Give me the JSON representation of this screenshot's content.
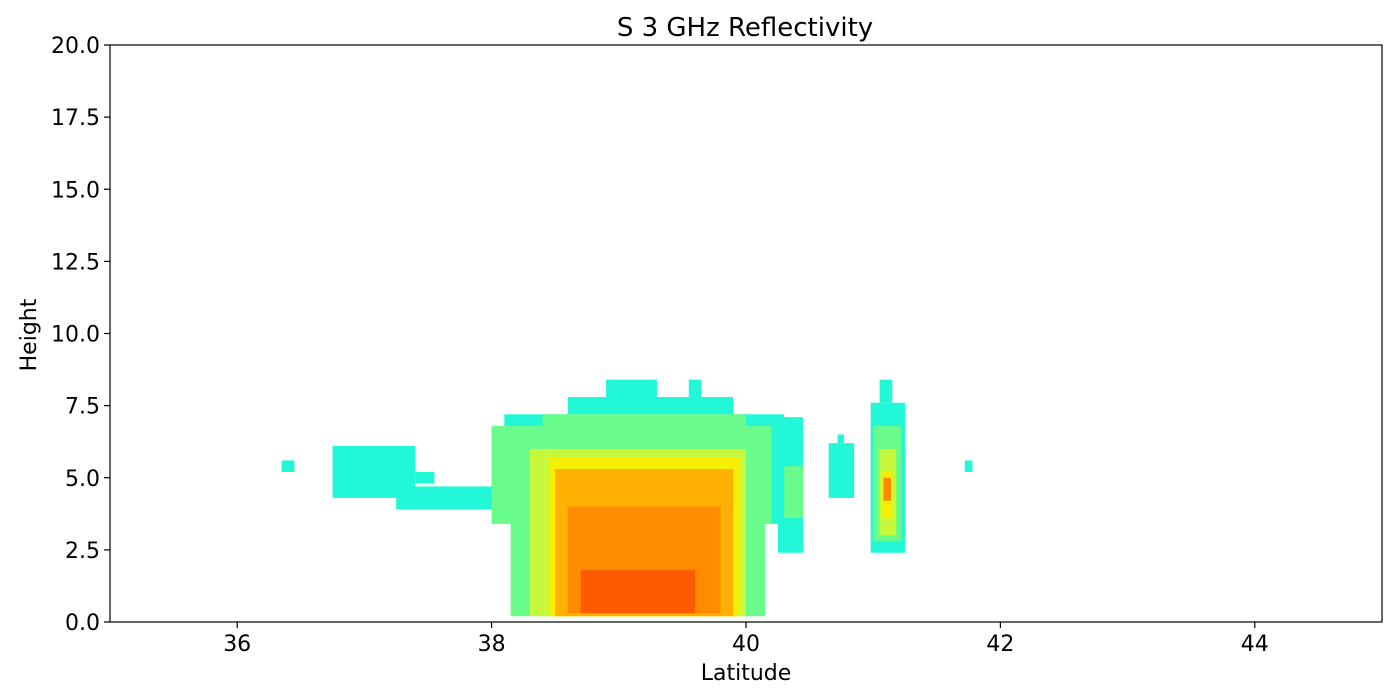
{
  "chart_data": {
    "type": "heatmap",
    "title": "S 3 GHz Reflectivity",
    "xlabel": "Latitude",
    "ylabel": "Height",
    "xlim": [
      35,
      45
    ],
    "ylim": [
      0,
      20
    ],
    "xticks": [
      {
        "value": 36,
        "label": "36"
      },
      {
        "value": 38,
        "label": "38"
      },
      {
        "value": 40,
        "label": "40"
      },
      {
        "value": 42,
        "label": "42"
      },
      {
        "value": 44,
        "label": "44"
      }
    ],
    "yticks": [
      {
        "value": 0.0,
        "label": "0.0"
      },
      {
        "value": 2.5,
        "label": "2.5"
      },
      {
        "value": 5.0,
        "label": "5.0"
      },
      {
        "value": 7.5,
        "label": "7.5"
      },
      {
        "value": 10.0,
        "label": "10.0"
      },
      {
        "value": 12.5,
        "label": "12.5"
      },
      {
        "value": 15.0,
        "label": "15.0"
      },
      {
        "value": 17.5,
        "label": "17.5"
      },
      {
        "value": 20.0,
        "label": "20.0"
      }
    ],
    "grid": false,
    "colormap": "jet",
    "colors": {
      "cyan": "#22f8d8",
      "green": "#6afc8a",
      "yellowgreen": "#c8f83c",
      "yellow": "#f6f000",
      "orange": "#ffb000",
      "darkorange": "#ff8c00",
      "redorange": "#ff5a00"
    },
    "layers": [
      {
        "level": "cyan",
        "x": [
          36.35,
          36.45
        ],
        "y": [
          5.2,
          5.6
        ]
      },
      {
        "level": "cyan",
        "x": [
          36.75,
          37.4
        ],
        "y": [
          4.3,
          6.1
        ]
      },
      {
        "level": "cyan",
        "x": [
          37.4,
          37.55
        ],
        "y": [
          4.8,
          5.2
        ]
      },
      {
        "level": "cyan",
        "x": [
          37.25,
          38.1
        ],
        "y": [
          3.9,
          4.7
        ]
      },
      {
        "level": "cyan",
        "x": [
          38.1,
          40.3
        ],
        "y": [
          3.4,
          7.2
        ]
      },
      {
        "level": "cyan",
        "x": [
          38.6,
          39.9
        ],
        "y": [
          7.2,
          7.8
        ]
      },
      {
        "level": "cyan",
        "x": [
          38.9,
          39.3
        ],
        "y": [
          7.8,
          8.4
        ]
      },
      {
        "level": "cyan",
        "x": [
          39.55,
          39.65
        ],
        "y": [
          7.8,
          8.4
        ]
      },
      {
        "level": "cyan",
        "x": [
          40.25,
          40.45
        ],
        "y": [
          2.4,
          7.1
        ]
      },
      {
        "level": "cyan",
        "x": [
          40.65,
          40.85
        ],
        "y": [
          4.3,
          6.2
        ]
      },
      {
        "level": "cyan",
        "x": [
          40.72,
          40.77
        ],
        "y": [
          6.2,
          6.5
        ]
      },
      {
        "level": "cyan",
        "x": [
          40.98,
          41.25
        ],
        "y": [
          2.4,
          7.6
        ]
      },
      {
        "level": "cyan",
        "x": [
          41.05,
          41.15
        ],
        "y": [
          7.6,
          8.4
        ]
      },
      {
        "level": "cyan",
        "x": [
          41.72,
          41.78
        ],
        "y": [
          5.2,
          5.6
        ]
      },
      {
        "level": "green",
        "x": [
          38.0,
          40.2
        ],
        "y": [
          3.4,
          6.8
        ]
      },
      {
        "level": "green",
        "x": [
          38.4,
          40.0
        ],
        "y": [
          6.8,
          7.2
        ]
      },
      {
        "level": "green",
        "x": [
          38.15,
          40.15
        ],
        "y": [
          0.2,
          3.4
        ]
      },
      {
        "level": "green",
        "x": [
          40.3,
          40.45
        ],
        "y": [
          3.6,
          5.4
        ]
      },
      {
        "level": "green",
        "x": [
          41.0,
          41.22
        ],
        "y": [
          2.8,
          6.8
        ]
      },
      {
        "level": "yellowgreen",
        "x": [
          38.3,
          40.0
        ],
        "y": [
          0.2,
          6.0
        ]
      },
      {
        "level": "yellowgreen",
        "x": [
          41.05,
          41.18
        ],
        "y": [
          3.0,
          6.0
        ]
      },
      {
        "level": "yellow",
        "x": [
          38.45,
          39.95
        ],
        "y": [
          0.2,
          5.7
        ]
      },
      {
        "level": "yellow",
        "x": [
          41.07,
          41.15
        ],
        "y": [
          3.6,
          5.2
        ]
      },
      {
        "level": "orange",
        "x": [
          38.5,
          39.9
        ],
        "y": [
          0.2,
          5.3
        ]
      },
      {
        "level": "darkorange",
        "x": [
          38.6,
          39.8
        ],
        "y": [
          0.3,
          4.0
        ]
      },
      {
        "level": "darkorange",
        "x": [
          41.08,
          41.14
        ],
        "y": [
          4.2,
          5.0
        ]
      },
      {
        "level": "redorange",
        "x": [
          38.7,
          39.6
        ],
        "y": [
          0.3,
          1.8
        ]
      }
    ]
  }
}
